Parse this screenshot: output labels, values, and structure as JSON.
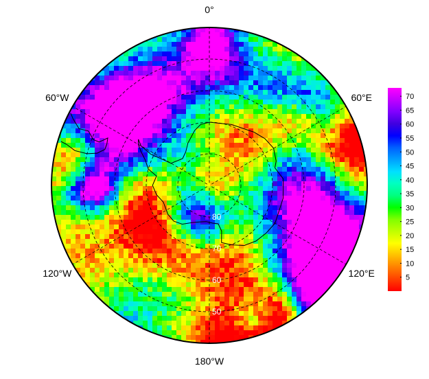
{
  "map": {
    "projection": "south-polar-stereographic",
    "longitude_labels": [
      {
        "name": "lon-label-0",
        "text": "0°",
        "lon": 0
      },
      {
        "name": "lon-label-60e",
        "text": "60°E",
        "lon": 60
      },
      {
        "name": "lon-label-120e",
        "text": "120°E",
        "lon": 120
      },
      {
        "name": "lon-label-180w",
        "text": "180°W",
        "lon": 180
      },
      {
        "name": "lon-label-120w",
        "text": "120°W",
        "lon": -120
      },
      {
        "name": "lon-label-60w",
        "text": "60°W",
        "lon": -60
      }
    ],
    "latitude_labels": [
      {
        "text": "80",
        "lat": -80
      },
      {
        "text": "70",
        "lat": -70
      },
      {
        "text": "60",
        "lat": -60
      },
      {
        "text": "50",
        "lat": -50
      }
    ],
    "graticule_lat_circles": [
      -80,
      -70,
      -60,
      -50,
      -40
    ],
    "graticule_meridians": [
      0,
      60,
      120,
      180,
      -120,
      -60
    ],
    "outer_lat": -40,
    "colors": {
      "background": "#ffffff",
      "graticule": "#000000",
      "coastline": "#000000"
    },
    "colorbar": {
      "ticks": [
        "70",
        "65",
        "60",
        "55",
        "50",
        "45",
        "40",
        "35",
        "30",
        "25",
        "20",
        "15",
        "10",
        "5"
      ],
      "min": 0,
      "max": 73,
      "colormap": [
        "#ff0000",
        "#ff4000",
        "#ff8000",
        "#ffc000",
        "#ffff00",
        "#c0ff00",
        "#80ff00",
        "#00ff00",
        "#00ff80",
        "#00ffc0",
        "#00e0ff",
        "#00a0ff",
        "#0060ff",
        "#0000ff",
        "#4000e0",
        "#8000ff",
        "#c000ff",
        "#ff00ff"
      ]
    }
  }
}
